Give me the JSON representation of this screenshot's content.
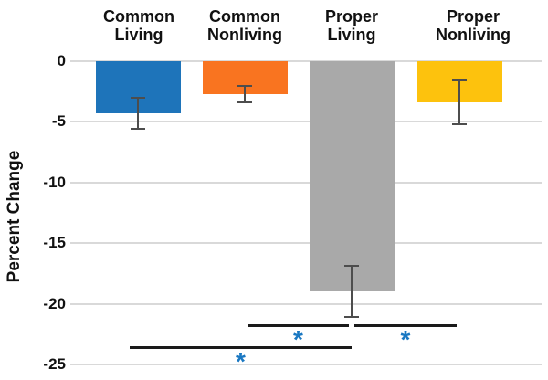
{
  "chart_data": {
    "type": "bar",
    "ylabel": "Percent Change",
    "ylim": [
      -25,
      0
    ],
    "yticks": [
      0,
      -5,
      -10,
      -15,
      -20,
      -25
    ],
    "grid": true,
    "categories": [
      "Common Living",
      "Common Nonliving",
      "Proper Living",
      "Proper Nonliving"
    ],
    "values": [
      -4.3,
      -2.7,
      -19,
      -3.4
    ],
    "errors": [
      1.3,
      0.7,
      2.1,
      1.8
    ],
    "bar_colors": [
      "#1e74ba",
      "#f97420",
      "#a9a9a9",
      "#fdc20d"
    ],
    "gridline_color": "#d9d9d9",
    "error_bar_color": "#4d4d4d",
    "significance_line_color": "#1a1a1a",
    "significance_marker_color": "#1a78c2",
    "significance": [
      {
        "between": [
          "Common Nonliving",
          "Proper Living"
        ],
        "marker": "*",
        "row": 0
      },
      {
        "between": [
          "Proper Living",
          "Proper Nonliving"
        ],
        "marker": "*",
        "row": 0
      },
      {
        "between": [
          "Common Living",
          "Proper Living"
        ],
        "marker": "*",
        "row": 1
      }
    ]
  }
}
